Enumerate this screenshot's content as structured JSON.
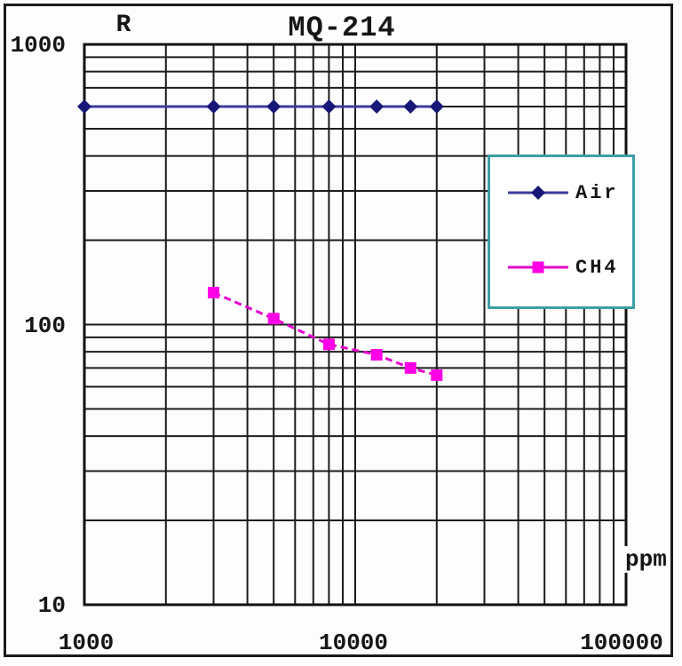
{
  "window": {
    "background": "#fdfdfd",
    "frame_border_color": "#1b1b1b"
  },
  "chart_data": {
    "type": "line",
    "title": "MQ-214",
    "ylabel": "R",
    "xlabel": "ppm",
    "x_scale": "log",
    "y_scale": "log",
    "xlim": [
      1000,
      100000
    ],
    "ylim": [
      10,
      1000
    ],
    "x_tick_labels": [
      "1000",
      "10000",
      "100000"
    ],
    "y_tick_labels": [
      "1000",
      "100",
      "10"
    ],
    "grid": "on-log-minor-both-axes",
    "grid_color": "#1c1c1c",
    "axis_border_color": "#111111",
    "series": [
      {
        "name": "Air",
        "marker": "diamond",
        "line_style": "solid",
        "line_color": "#3b3b9d",
        "marker_color": "#171778",
        "x": [
          1000,
          3000,
          5000,
          8000,
          12000,
          16000,
          20000
        ],
        "y": [
          600,
          600,
          600,
          600,
          600,
          600,
          600
        ]
      },
      {
        "name": "CH4",
        "marker": "square",
        "line_style": "dashed",
        "line_color": "#e600cc",
        "marker_color": "#ff00e6",
        "x": [
          3000,
          5000,
          8000,
          12000,
          16000,
          20000
        ],
        "y": [
          130,
          105,
          85,
          78,
          70,
          66
        ]
      }
    ],
    "legend": {
      "position": "inside-right",
      "border_color": "#3d9ea6",
      "entries": [
        "Air",
        "CH4"
      ]
    }
  }
}
